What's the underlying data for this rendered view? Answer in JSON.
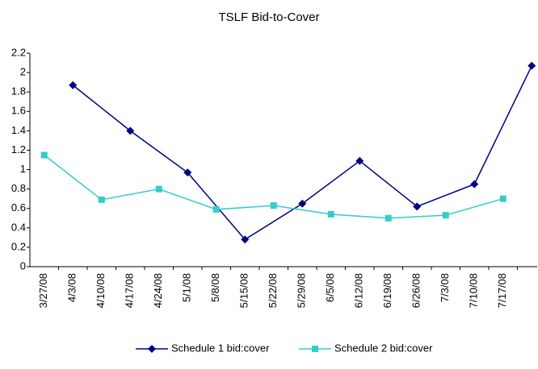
{
  "chart_data": {
    "type": "line",
    "title": "TSLF Bid-to-Cover",
    "categories": [
      "3/27/08",
      "4/3/08",
      "4/10/08",
      "4/17/08",
      "4/24/08",
      "5/1/08",
      "5/8/08",
      "5/15/08",
      "5/22/08",
      "5/29/08",
      "6/5/08",
      "6/12/08",
      "6/19/08",
      "6/26/08",
      "7/3/08",
      "7/10/08",
      "7/17/08",
      null
    ],
    "series": [
      {
        "name": "Schedule 1 bid:cover",
        "color": "#000080",
        "marker": "diamond",
        "values": [
          null,
          1.87,
          null,
          1.4,
          null,
          0.97,
          null,
          0.28,
          null,
          0.65,
          null,
          1.09,
          null,
          0.62,
          null,
          0.85,
          null,
          2.07
        ]
      },
      {
        "name": "Schedule 2 bid:cover",
        "color": "#33cccc",
        "marker": "square",
        "values": [
          1.15,
          null,
          0.69,
          null,
          0.8,
          null,
          0.59,
          null,
          0.63,
          null,
          0.54,
          null,
          0.5,
          null,
          0.53,
          null,
          0.7,
          null
        ]
      }
    ],
    "ylim": [
      0,
      2.2
    ],
    "yticks": [
      0,
      0.2,
      0.4,
      0.6,
      0.8,
      1,
      1.2,
      1.4,
      1.6,
      1.8,
      2,
      2.2
    ],
    "grid": false,
    "legend": "bottom"
  }
}
